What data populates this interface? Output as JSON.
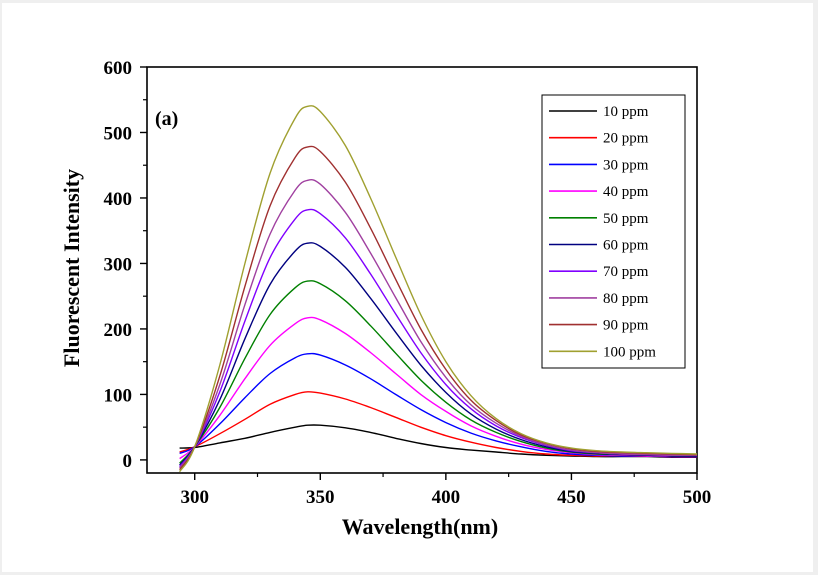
{
  "chart_data": {
    "type": "line",
    "title": "",
    "panel_label": "(a)",
    "xlabel": "Wavelength(nm)",
    "ylabel": "Fluorescent Intensity",
    "xlim": [
      281,
      500
    ],
    "ylim": [
      -20,
      600
    ],
    "xticks": [
      300,
      350,
      400,
      450,
      500
    ],
    "yticks": [
      0,
      100,
      200,
      300,
      400,
      500,
      600
    ],
    "grid": false,
    "legend_position": "top-right",
    "x": [
      294,
      300,
      310,
      320,
      330,
      340,
      345,
      350,
      360,
      370,
      380,
      390,
      400,
      410,
      420,
      430,
      440,
      450,
      460,
      470,
      480,
      490,
      500
    ],
    "series": [
      {
        "name": "10 ppm",
        "color": "#000000",
        "values": [
          18,
          19,
          26,
          33,
          42,
          50,
          53,
          53,
          49,
          42,
          33,
          25,
          19,
          15,
          12,
          9,
          7,
          6,
          5,
          5,
          5,
          4,
          4
        ]
      },
      {
        "name": "20 ppm",
        "color": "#ff0000",
        "values": [
          12,
          20,
          40,
          62,
          85,
          100,
          104,
          102,
          93,
          80,
          65,
          50,
          37,
          27,
          19,
          13,
          9,
          7,
          6,
          6,
          6,
          5,
          5
        ]
      },
      {
        "name": "30 ppm",
        "color": "#0000ff",
        "values": [
          10,
          20,
          55,
          95,
          132,
          156,
          162,
          160,
          145,
          124,
          100,
          77,
          57,
          41,
          29,
          20,
          13,
          9,
          7,
          6,
          6,
          5,
          5
        ]
      },
      {
        "name": "40 ppm",
        "color": "#ff00ff",
        "values": [
          2,
          20,
          68,
          124,
          175,
          208,
          217,
          214,
          193,
          164,
          132,
          100,
          74,
          52,
          36,
          24,
          16,
          11,
          8,
          7,
          6,
          5,
          5
        ]
      },
      {
        "name": "50 ppm",
        "color": "#008000",
        "values": [
          -5,
          20,
          80,
          155,
          222,
          263,
          273,
          269,
          243,
          205,
          163,
          122,
          88,
          61,
          42,
          28,
          18,
          12,
          9,
          8,
          7,
          6,
          6
        ]
      },
      {
        "name": "60 ppm",
        "color": "#000080",
        "values": [
          -8,
          20,
          92,
          185,
          268,
          319,
          331,
          326,
          294,
          247,
          195,
          145,
          103,
          70,
          47,
          31,
          20,
          13,
          10,
          8,
          7,
          6,
          6
        ]
      },
      {
        "name": "70 ppm",
        "color": "#8000ff",
        "values": [
          -10,
          20,
          104,
          212,
          309,
          368,
          382,
          376,
          339,
          284,
          223,
          164,
          115,
          78,
          52,
          34,
          22,
          14,
          11,
          9,
          8,
          7,
          7
        ]
      },
      {
        "name": "80 ppm",
        "color": "#a040a0",
        "values": [
          -12,
          20,
          115,
          237,
          345,
          412,
          427,
          421,
          378,
          316,
          248,
          181,
          126,
          84,
          56,
          36,
          23,
          15,
          11,
          9,
          8,
          7,
          7
        ]
      },
      {
        "name": "90 ppm",
        "color": "#a03030",
        "values": [
          -15,
          20,
          128,
          265,
          388,
          462,
          478,
          471,
          424,
          354,
          276,
          200,
          138,
          91,
          60,
          38,
          25,
          17,
          13,
          11,
          10,
          9,
          8
        ]
      },
      {
        "name": "100 ppm",
        "color": "#a0a030",
        "values": [
          -18,
          20,
          145,
          300,
          438,
          522,
          540,
          532,
          480,
          400,
          310,
          222,
          150,
          98,
          63,
          40,
          26,
          18,
          14,
          12,
          11,
          10,
          9
        ]
      }
    ]
  }
}
